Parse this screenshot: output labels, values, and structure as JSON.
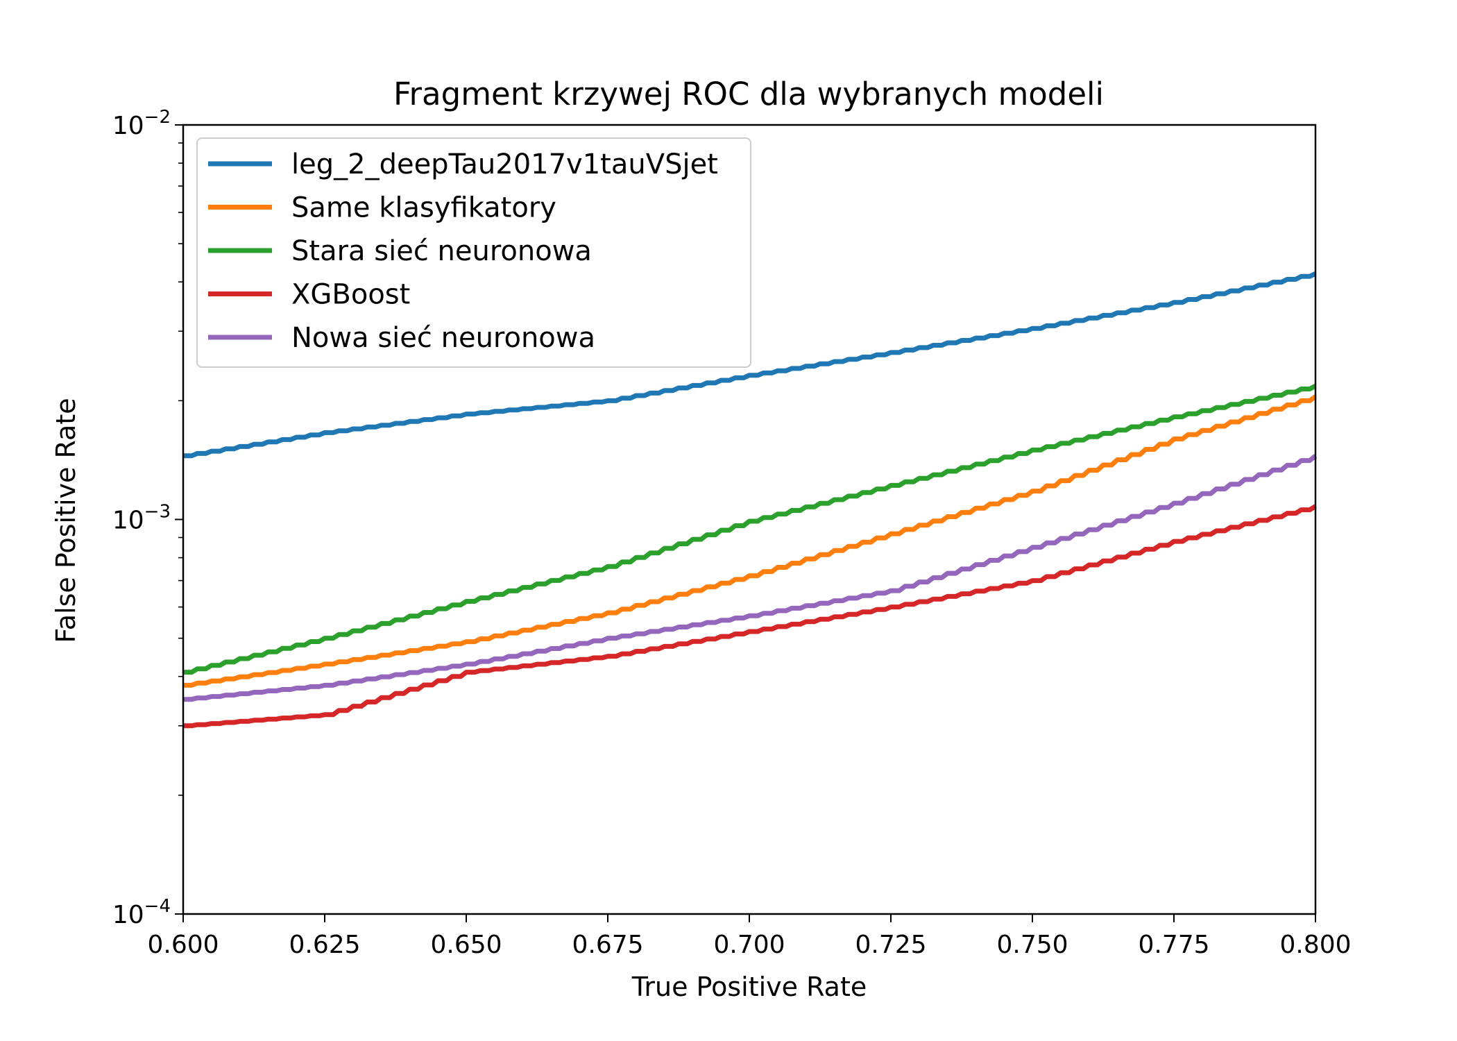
{
  "chart_data": {
    "type": "line",
    "title": "Fragment krzywej ROC dla wybranych modeli",
    "xlabel": "True Positive Rate",
    "ylabel": "False Positive Rate",
    "xlim": [
      0.6,
      0.8
    ],
    "ylim": [
      0.0001,
      0.01
    ],
    "yscale": "log",
    "grid": false,
    "legend_position": "top-left",
    "x_ticks": [
      "0.600",
      "0.625",
      "0.650",
      "0.675",
      "0.700",
      "0.725",
      "0.750",
      "0.775",
      "0.800"
    ],
    "y_ticks": [
      {
        "base": "10",
        "exp": "−4",
        "value": 0.0001
      },
      {
        "base": "10",
        "exp": "−3",
        "value": 0.001
      },
      {
        "base": "10",
        "exp": "−2",
        "value": 0.01
      }
    ],
    "x": [
      0.6,
      0.625,
      0.65,
      0.675,
      0.7,
      0.725,
      0.75,
      0.775,
      0.8
    ],
    "series": [
      {
        "name": "leg_2_deepTau2017v1tauVSjet",
        "color": "#1f77b4",
        "values": [
          0.00145,
          0.00166,
          0.00185,
          0.002,
          0.00232,
          0.00265,
          0.00305,
          0.00355,
          0.0042
        ]
      },
      {
        "name": "Same klasyfikatory",
        "color": "#ff7f0e",
        "values": [
          0.00038,
          0.00043,
          0.00049,
          0.00058,
          0.00072,
          0.00092,
          0.00118,
          0.0016,
          0.00205
        ]
      },
      {
        "name": "Stara sieć neuronowa",
        "color": "#2ca02c",
        "values": [
          0.00041,
          0.0005,
          0.00062,
          0.00076,
          0.00099,
          0.00122,
          0.0015,
          0.00182,
          0.00218
        ]
      },
      {
        "name": "XGBoost",
        "color": "#d62728",
        "values": [
          0.0003,
          0.00032,
          0.00041,
          0.00045,
          0.00052,
          0.0006,
          0.0007,
          0.00088,
          0.00108
        ]
      },
      {
        "name": "Nowa sieć neuronowa",
        "color": "#9467bd",
        "values": [
          0.00035,
          0.00038,
          0.00043,
          0.0005,
          0.00057,
          0.00066,
          0.00085,
          0.0011,
          0.00145
        ]
      }
    ]
  }
}
